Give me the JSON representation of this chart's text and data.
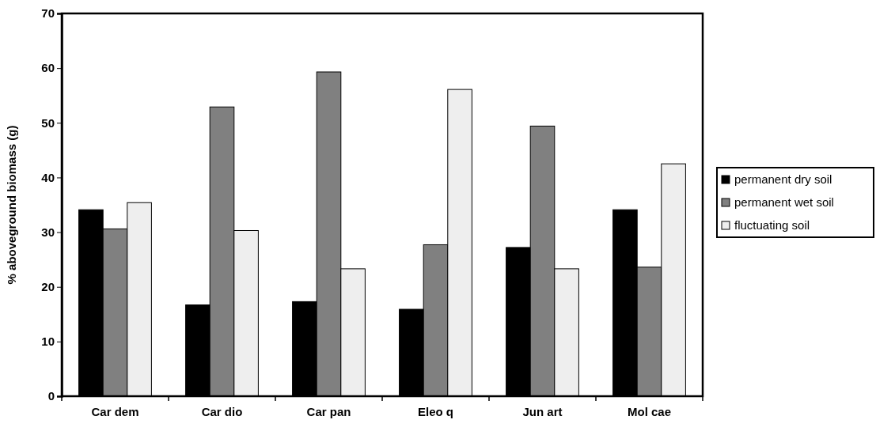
{
  "chart_data": {
    "type": "bar",
    "ylabel": "% aboveground biomass (g)",
    "categories": [
      "Car dem",
      "Car dio",
      "Car pan",
      "Eleo q",
      "Jun art",
      "Mol cae"
    ],
    "series": [
      {
        "name": "permanent dry soil",
        "color": "#000000",
        "values": [
          34.1,
          16.7,
          17.3,
          15.9,
          27.2,
          34.1
        ]
      },
      {
        "name": "permanent wet soil",
        "color": "#808080",
        "values": [
          30.6,
          52.9,
          59.3,
          27.7,
          49.4,
          23.6
        ]
      },
      {
        "name": "fluctuating soil",
        "color": "#eeeeee",
        "values": [
          35.4,
          30.3,
          23.3,
          56.1,
          23.3,
          42.5
        ]
      }
    ],
    "ylim": [
      0,
      70
    ],
    "yticks": [
      0,
      10,
      20,
      30,
      40,
      50,
      60,
      70
    ],
    "grid": false,
    "legend": "right"
  }
}
